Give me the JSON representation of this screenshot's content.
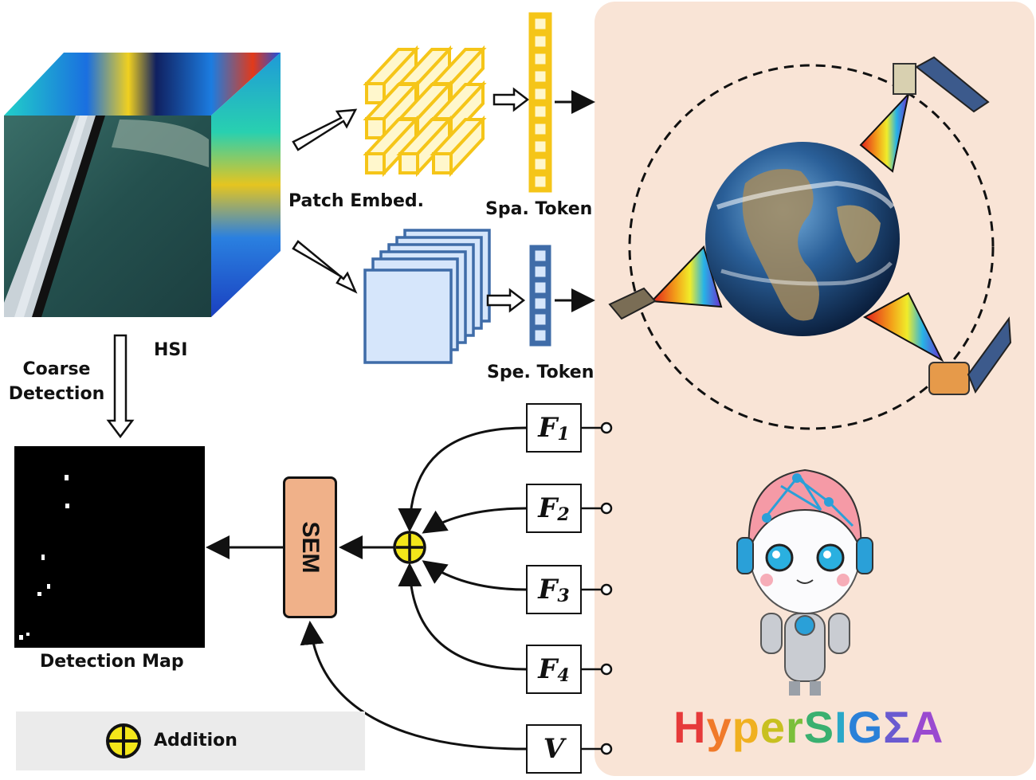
{
  "labels": {
    "hsi": "HSI",
    "patch_embed": "Patch Embed.",
    "spa_token": "Spa. Token",
    "spe_token": "Spe. Token",
    "coarse_detection": "Coarse Detection",
    "detection_map": "Detection Map",
    "sem": "SEM",
    "addition": "Addition",
    "brand": "HyperSIGMA"
  },
  "features": [
    {
      "symbol": "F",
      "sub": "1"
    },
    {
      "symbol": "F",
      "sub": "2"
    },
    {
      "symbol": "F",
      "sub": "3"
    },
    {
      "symbol": "F",
      "sub": "4"
    },
    {
      "symbol": "V",
      "sub": ""
    }
  ],
  "colors": {
    "panel_bg": "#f9e4d6",
    "sem_fill": "#f0b189",
    "spa_token": "#f5c518",
    "spe_token": "#3f6ca8",
    "addition_fill": "#f3e61a"
  },
  "icons": [
    "hsi-cube-image",
    "earth-icon",
    "satellite-icon",
    "robot-mascot-icon",
    "addition-icon"
  ]
}
